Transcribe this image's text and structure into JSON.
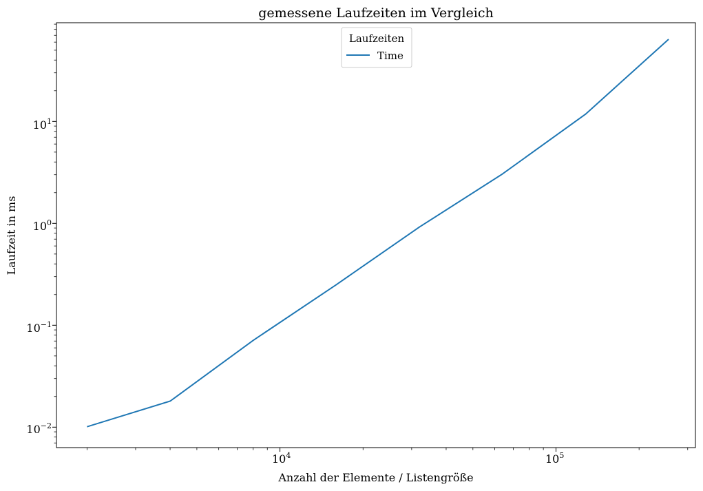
{
  "chart_data": {
    "type": "line",
    "title": "gemessene Laufzeiten im Vergleich",
    "xlabel": "Anzahl der Elemente / Listengröße",
    "ylabel": "Laufzeit in ms",
    "xscale": "log",
    "yscale": "log",
    "xlim": [
      1550,
      320000
    ],
    "ylim": [
      0.0063,
      93
    ],
    "x_ticks": [
      {
        "value": 10000,
        "base": "10",
        "exp": "4"
      },
      {
        "value": 100000,
        "base": "10",
        "exp": "5"
      }
    ],
    "y_ticks": [
      {
        "value": 0.01,
        "base": "10",
        "exp": "−2"
      },
      {
        "value": 0.1,
        "base": "10",
        "exp": "−1"
      },
      {
        "value": 1,
        "base": "10",
        "exp": "0"
      },
      {
        "value": 10,
        "base": "10",
        "exp": "1"
      }
    ],
    "x": [
      2000,
      4000,
      8000,
      16000,
      32000,
      64000,
      128000,
      256000
    ],
    "series": [
      {
        "name": "Time",
        "values": [
          0.0101,
          0.018,
          0.071,
          0.25,
          0.92,
          3.05,
          11.8,
          64
        ],
        "color": "#1f77b4"
      }
    ],
    "legend": {
      "title": "Laufzeiten",
      "placement": "upper-center"
    },
    "grid": false
  }
}
